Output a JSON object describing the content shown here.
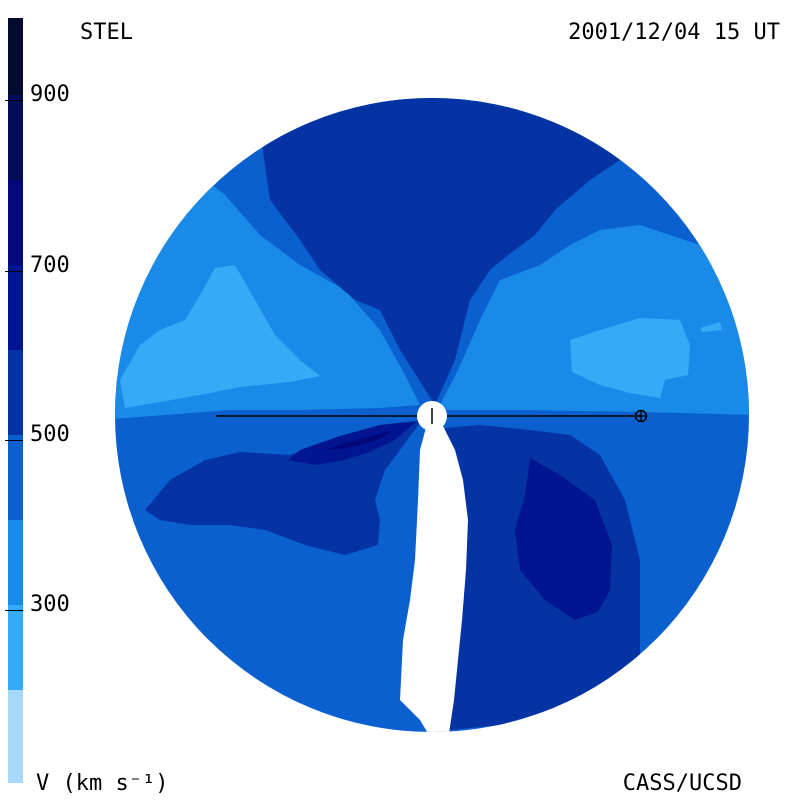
{
  "header": {
    "left_label": "STEL",
    "right_label": "2001/12/04 15 UT"
  },
  "footer": {
    "left_label": "V (km s⁻¹)",
    "right_label": "CASS/UCSD"
  },
  "colorbar": {
    "ticks": [
      "900",
      "700",
      "500",
      "300"
    ],
    "levels": [
      {
        "range": "> 900",
        "color": "#020a2e"
      },
      {
        "range": "800-900",
        "color": "#020c58"
      },
      {
        "range": "700-800",
        "color": "#02087a"
      },
      {
        "range": "600-700",
        "color": "#021590"
      },
      {
        "range": "500-600",
        "color": "#0533a4"
      },
      {
        "range": "400-500",
        "color": "#0a60cf"
      },
      {
        "range": "300-400",
        "color": "#1a8ae8"
      },
      {
        "range": "200-300",
        "color": "#36aaf6"
      },
      {
        "range": "< 200",
        "color": "#a6d8fa"
      }
    ]
  },
  "map": {
    "quantity": "solar wind speed",
    "markers": [
      {
        "name": "sun",
        "symbol": "+"
      },
      {
        "name": "earth",
        "symbol": "⊕"
      }
    ]
  }
}
